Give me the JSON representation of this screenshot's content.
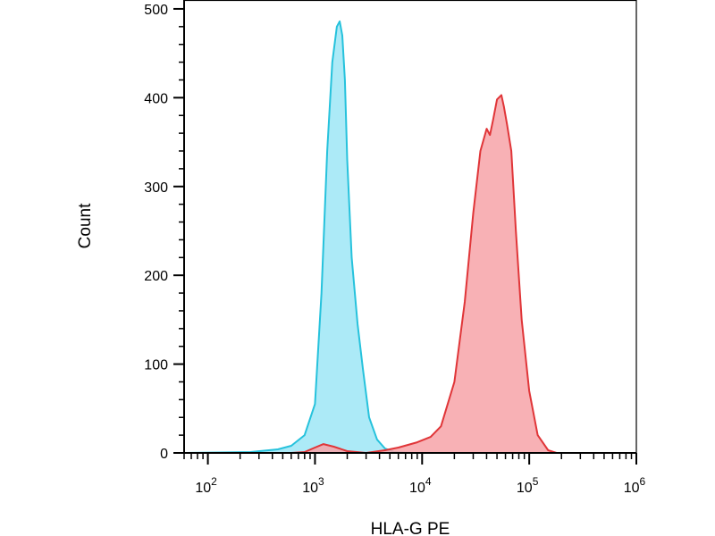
{
  "chart_data": {
    "type": "area",
    "xlabel": "HLA-G PE",
    "ylabel": "Count",
    "x_scale": "log",
    "xlim": [
      60,
      1000000
    ],
    "ylim": [
      0,
      510
    ],
    "x_ticks": [
      {
        "value": 100,
        "base": "10",
        "exp": "2"
      },
      {
        "value": 1000,
        "base": "10",
        "exp": "3"
      },
      {
        "value": 10000,
        "base": "10",
        "exp": "4"
      },
      {
        "value": 100000,
        "base": "10",
        "exp": "5"
      },
      {
        "value": 1000000,
        "base": "10",
        "exp": "6"
      }
    ],
    "y_ticks": [
      {
        "value": 0,
        "label": "0"
      },
      {
        "value": 100,
        "label": "100"
      },
      {
        "value": 200,
        "label": "200"
      },
      {
        "value": 300,
        "label": "300"
      },
      {
        "value": 400,
        "label": "400"
      },
      {
        "value": 500,
        "label": "500"
      }
    ],
    "grid": false,
    "legend": "none",
    "series": [
      {
        "line_color": "#26c2dc",
        "fill_color": "#9de6f6",
        "points": [
          [
            60,
            0
          ],
          [
            250,
            1
          ],
          [
            450,
            4
          ],
          [
            600,
            8
          ],
          [
            800,
            20
          ],
          [
            1000,
            55
          ],
          [
            1150,
            180
          ],
          [
            1300,
            340
          ],
          [
            1450,
            440
          ],
          [
            1600,
            480
          ],
          [
            1700,
            486
          ],
          [
            1800,
            470
          ],
          [
            1900,
            420
          ],
          [
            2000,
            330
          ],
          [
            2200,
            220
          ],
          [
            2500,
            145
          ],
          [
            2800,
            95
          ],
          [
            3200,
            40
          ],
          [
            3800,
            15
          ],
          [
            4500,
            5
          ],
          [
            5500,
            1
          ],
          [
            8000,
            0
          ],
          [
            1000000,
            0
          ]
        ]
      },
      {
        "line_color": "#e03538",
        "fill_color": "#f7a3a8",
        "points": [
          [
            600,
            0
          ],
          [
            800,
            1
          ],
          [
            1000,
            6
          ],
          [
            1200,
            10
          ],
          [
            1500,
            7
          ],
          [
            2000,
            2
          ],
          [
            3000,
            0
          ],
          [
            4500,
            3
          ],
          [
            6000,
            6
          ],
          [
            9000,
            12
          ],
          [
            12000,
            18
          ],
          [
            15000,
            30
          ],
          [
            20000,
            80
          ],
          [
            25000,
            170
          ],
          [
            30000,
            270
          ],
          [
            35000,
            340
          ],
          [
            40000,
            365
          ],
          [
            43000,
            358
          ],
          [
            46000,
            375
          ],
          [
            50000,
            398
          ],
          [
            55000,
            403
          ],
          [
            58000,
            390
          ],
          [
            62000,
            370
          ],
          [
            68000,
            340
          ],
          [
            75000,
            250
          ],
          [
            85000,
            150
          ],
          [
            100000,
            70
          ],
          [
            120000,
            20
          ],
          [
            150000,
            3
          ],
          [
            180000,
            0
          ],
          [
            1000000,
            0
          ]
        ]
      }
    ]
  }
}
